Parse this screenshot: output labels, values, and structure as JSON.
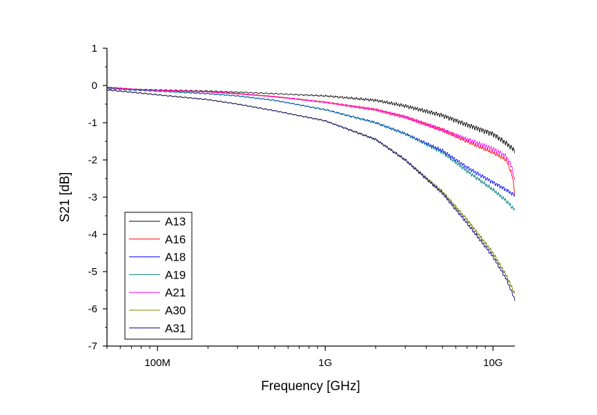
{
  "chart_data": {
    "type": "line",
    "title": "",
    "xlabel": "Frequency [GHz]",
    "ylabel": "S21 [dB]",
    "xscale": "log",
    "xlim": [
      0.05,
      13.5
    ],
    "ylim": [
      -7,
      1
    ],
    "x_ticks": [
      {
        "value": 0.1,
        "label": "100M"
      },
      {
        "value": 1,
        "label": "1G"
      },
      {
        "value": 10,
        "label": "10G"
      }
    ],
    "y_ticks": [
      {
        "value": 1,
        "label": "1"
      },
      {
        "value": 0,
        "label": "0"
      },
      {
        "value": -1,
        "label": "-1"
      },
      {
        "value": -2,
        "label": "-2"
      },
      {
        "value": -3,
        "label": "-3"
      },
      {
        "value": -4,
        "label": "-4"
      },
      {
        "value": -5,
        "label": "-5"
      },
      {
        "value": -6,
        "label": "-6"
      },
      {
        "value": -7,
        "label": "-7"
      }
    ],
    "grid": false,
    "legend_position": "bottom-left",
    "series": [
      {
        "name": "A13",
        "color": "#000000",
        "ripple": 0.07,
        "x": [
          0.05,
          0.07,
          0.1,
          0.2,
          0.3,
          0.5,
          1,
          2,
          3,
          5,
          7,
          10,
          12,
          13.5
        ],
        "y": [
          -0.05,
          -0.1,
          -0.12,
          -0.15,
          -0.18,
          -0.22,
          -0.28,
          -0.4,
          -0.55,
          -0.8,
          -1.05,
          -1.3,
          -1.55,
          -1.75
        ]
      },
      {
        "name": "A16",
        "color": "#ff0000",
        "ripple": 0.06,
        "x": [
          0.05,
          0.07,
          0.1,
          0.2,
          0.3,
          0.5,
          1,
          2,
          3,
          5,
          7,
          10,
          12,
          13,
          13.5
        ],
        "y": [
          -0.05,
          -0.1,
          -0.13,
          -0.17,
          -0.22,
          -0.3,
          -0.45,
          -0.65,
          -0.85,
          -1.2,
          -1.5,
          -1.8,
          -2.0,
          -2.4,
          -2.9
        ]
      },
      {
        "name": "A18",
        "color": "#0000ff",
        "ripple": 0.05,
        "x": [
          0.05,
          0.07,
          0.1,
          0.2,
          0.3,
          0.5,
          1,
          2,
          3,
          5,
          7,
          10,
          12,
          13.5
        ],
        "y": [
          -0.08,
          -0.12,
          -0.15,
          -0.22,
          -0.28,
          -0.4,
          -0.65,
          -1.0,
          -1.3,
          -1.75,
          -2.2,
          -2.6,
          -2.8,
          -2.95
        ]
      },
      {
        "name": "A19",
        "color": "#008080",
        "ripple": 0.05,
        "x": [
          0.05,
          0.07,
          0.1,
          0.2,
          0.3,
          0.5,
          1,
          2,
          3,
          5,
          7,
          10,
          12,
          13.5
        ],
        "y": [
          -0.08,
          -0.12,
          -0.15,
          -0.22,
          -0.28,
          -0.4,
          -0.65,
          -1.0,
          -1.3,
          -1.8,
          -2.3,
          -2.8,
          -3.1,
          -3.35
        ]
      },
      {
        "name": "A21",
        "color": "#ff00ff",
        "ripple": 0.06,
        "x": [
          0.05,
          0.07,
          0.1,
          0.2,
          0.3,
          0.5,
          1,
          2,
          3,
          5,
          7,
          10,
          12,
          13,
          13.5
        ],
        "y": [
          -0.05,
          -0.1,
          -0.13,
          -0.17,
          -0.22,
          -0.3,
          -0.45,
          -0.65,
          -0.85,
          -1.2,
          -1.45,
          -1.7,
          -1.9,
          -2.2,
          -2.6
        ]
      },
      {
        "name": "A30",
        "color": "#808000",
        "ripple": 0.05,
        "x": [
          0.05,
          0.07,
          0.1,
          0.2,
          0.3,
          0.5,
          1,
          2,
          3,
          5,
          7,
          10,
          12,
          13.5
        ],
        "y": [
          -0.12,
          -0.18,
          -0.25,
          -0.38,
          -0.5,
          -0.68,
          -0.95,
          -1.45,
          -2.0,
          -2.85,
          -3.6,
          -4.5,
          -5.1,
          -5.6
        ]
      },
      {
        "name": "A31",
        "color": "#000080",
        "ripple": 0.05,
        "x": [
          0.05,
          0.07,
          0.1,
          0.2,
          0.3,
          0.5,
          1,
          2,
          3,
          5,
          7,
          10,
          12,
          13.5
        ],
        "y": [
          -0.12,
          -0.18,
          -0.25,
          -0.38,
          -0.5,
          -0.68,
          -0.95,
          -1.45,
          -2.0,
          -2.9,
          -3.7,
          -4.6,
          -5.2,
          -5.75
        ]
      }
    ]
  }
}
